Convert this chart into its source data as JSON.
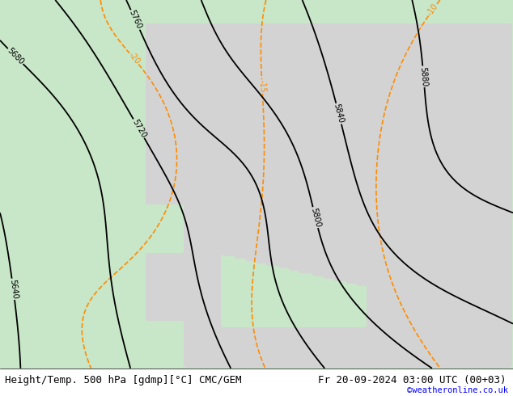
{
  "title_left": "Height/Temp. 500 hPa [gdmp][°C] CMC/GEM",
  "title_right": "Fr 20-09-2024 03:00 UTC (00+03)",
  "copyright": "©weatheronline.co.uk",
  "bg_color": "#c8e6c8",
  "land_color": "#d3d3d3",
  "sea_color": "#c8e6c8",
  "contour_color_height": "#000000",
  "contour_color_temp": "#ff8c00",
  "contour_color_temp_neg": "#ff8c00",
  "contour_color_cyan": "#00cccc",
  "font_size_title": 9,
  "font_size_label": 7.5,
  "font_size_copyright": 7.5
}
